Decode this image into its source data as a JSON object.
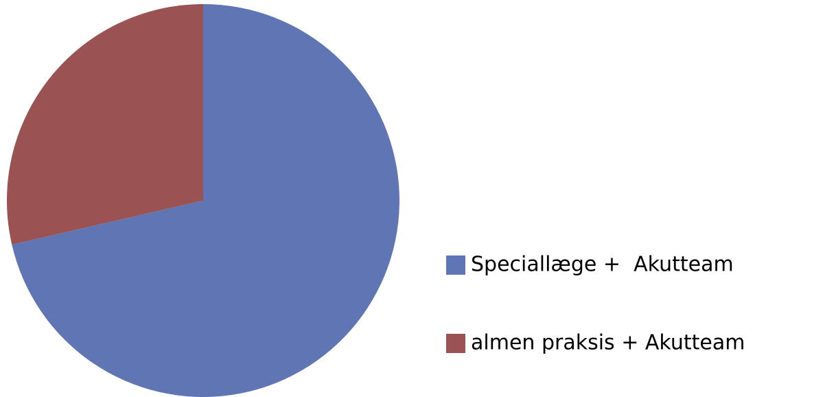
{
  "chart_data": {
    "type": "pie",
    "categories": [
      "Speciallæge +  Akutteam",
      "almen praksis + Akutteam"
    ],
    "values": [
      71.4,
      28.6
    ],
    "colors": [
      "#6076b4",
      "#9b5252"
    ],
    "legend": "right"
  }
}
